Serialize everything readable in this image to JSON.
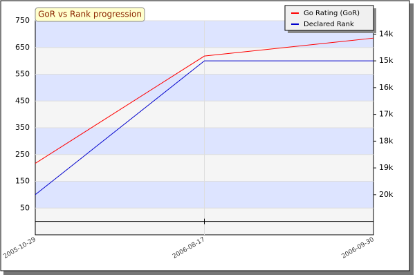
{
  "chart_data": {
    "type": "line",
    "title": "GoR vs Rank progression",
    "categories": [
      "2005-10-29",
      "2006-08-17",
      "2006-09-30"
    ],
    "series": [
      {
        "name": "Go Rating (GoR)",
        "color": "#ff0000",
        "values": [
          217,
          618,
          685
        ]
      },
      {
        "name": "Declared Rank",
        "color": "#0000cc",
        "values": [
          20,
          15,
          15
        ],
        "axis": "y2"
      }
    ],
    "ylim": [
      -50,
      750
    ],
    "yticks": [
      50,
      150,
      250,
      350,
      450,
      550,
      650,
      750
    ],
    "y2lim": [
      21.5,
      13.5
    ],
    "y2ticks": [
      {
        "value": 14,
        "label": "14k"
      },
      {
        "value": 15,
        "label": "15k"
      },
      {
        "value": 16,
        "label": "16k"
      },
      {
        "value": 17,
        "label": "17k"
      },
      {
        "value": 18,
        "label": "18k"
      },
      {
        "value": 19,
        "label": "19k"
      },
      {
        "value": 20,
        "label": "20k"
      }
    ],
    "grid": true
  }
}
